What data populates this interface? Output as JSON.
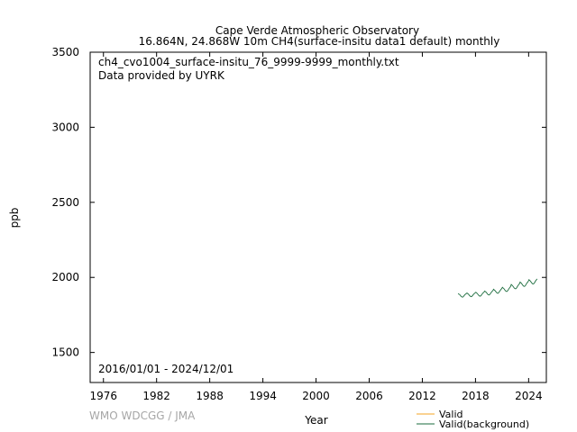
{
  "chart_data": {
    "type": "line",
    "title": "Cape Verde Atmospheric Observatory",
    "subtitle": "16.864N, 24.868W 10m    CH4(surface-insitu data1 default) monthly",
    "xlabel": "Year",
    "ylabel": "ppb",
    "xlim": [
      1974.5,
      2026.0
    ],
    "ylim": [
      1300,
      3500
    ],
    "x_ticks": [
      "1976",
      "1982",
      "1988",
      "1994",
      "2000",
      "2006",
      "2012",
      "2018",
      "2024"
    ],
    "y_ticks": [
      "1500",
      "2000",
      "2500",
      "3000",
      "3500"
    ],
    "annotations": {
      "file": "ch4_cvo1004_surface-insitu_76_9999-9999_monthly.txt",
      "provider": "Data provided by UYRK",
      "period": "2016/01/01 - 2024/12/01"
    },
    "watermark": "WMO WDCGG / JMA",
    "legend_position": "bottom-right",
    "grid": false,
    "series": [
      {
        "name": "Valid",
        "color": "#f5a623",
        "x": [],
        "values": []
      },
      {
        "name": "Valid(background)",
        "color": "#1a6b3c",
        "x": [
          2016.04,
          2016.13,
          2016.21,
          2016.29,
          2016.38,
          2016.46,
          2016.54,
          2016.63,
          2016.71,
          2016.79,
          2016.88,
          2016.96,
          2017.04,
          2017.13,
          2017.21,
          2017.29,
          2017.38,
          2017.46,
          2017.54,
          2017.63,
          2017.71,
          2017.79,
          2017.88,
          2017.96,
          2018.04,
          2018.13,
          2018.21,
          2018.29,
          2018.38,
          2018.46,
          2018.54,
          2018.63,
          2018.71,
          2018.79,
          2018.88,
          2018.96,
          2019.04,
          2019.13,
          2019.21,
          2019.29,
          2019.38,
          2019.46,
          2019.54,
          2019.63,
          2019.71,
          2019.79,
          2019.88,
          2019.96,
          2020.04,
          2020.13,
          2020.21,
          2020.29,
          2020.38,
          2020.46,
          2020.54,
          2020.63,
          2020.71,
          2020.79,
          2020.88,
          2020.96,
          2021.04,
          2021.13,
          2021.21,
          2021.29,
          2021.38,
          2021.46,
          2021.54,
          2021.63,
          2021.71,
          2021.79,
          2021.88,
          2021.96,
          2022.04,
          2022.13,
          2022.21,
          2022.29,
          2022.38,
          2022.46,
          2022.54,
          2022.63,
          2022.71,
          2022.79,
          2022.88,
          2022.96,
          2023.04,
          2023.13,
          2023.21,
          2023.29,
          2023.38,
          2023.46,
          2023.54,
          2023.63,
          2023.71,
          2023.79,
          2023.88,
          2023.96,
          2024.04,
          2024.13,
          2024.21,
          2024.29,
          2024.38,
          2024.46,
          2024.54,
          2024.63,
          2024.71,
          2024.79,
          2024.88,
          2024.96
        ],
        "values": [
          1893,
          1888,
          1886,
          1880,
          1874,
          1870,
          1868,
          1872,
          1878,
          1884,
          1889,
          1892,
          1896,
          1892,
          1888,
          1882,
          1876,
          1873,
          1872,
          1876,
          1882,
          1888,
          1893,
          1897,
          1901,
          1897,
          1892,
          1886,
          1880,
          1876,
          1875,
          1879,
          1886,
          1892,
          1898,
          1902,
          1909,
          1905,
          1901,
          1895,
          1888,
          1884,
          1883,
          1887,
          1894,
          1901,
          1907,
          1912,
          1921,
          1916,
          1912,
          1906,
          1899,
          1895,
          1894,
          1899,
          1906,
          1913,
          1920,
          1925,
          1934,
          1929,
          1925,
          1918,
          1911,
          1907,
          1906,
          1911,
          1918,
          1926,
          1933,
          1939,
          1953,
          1948,
          1943,
          1936,
          1929,
          1925,
          1924,
          1929,
          1937,
          1945,
          1952,
          1958,
          1969,
          1964,
          1959,
          1952,
          1945,
          1941,
          1940,
          1945,
          1953,
          1961,
          1968,
          1974,
          1985,
          1980,
          1975,
          1968,
          1961,
          1957,
          1956,
          1961,
          1969,
          1977,
          1984,
          1990
        ]
      }
    ]
  }
}
